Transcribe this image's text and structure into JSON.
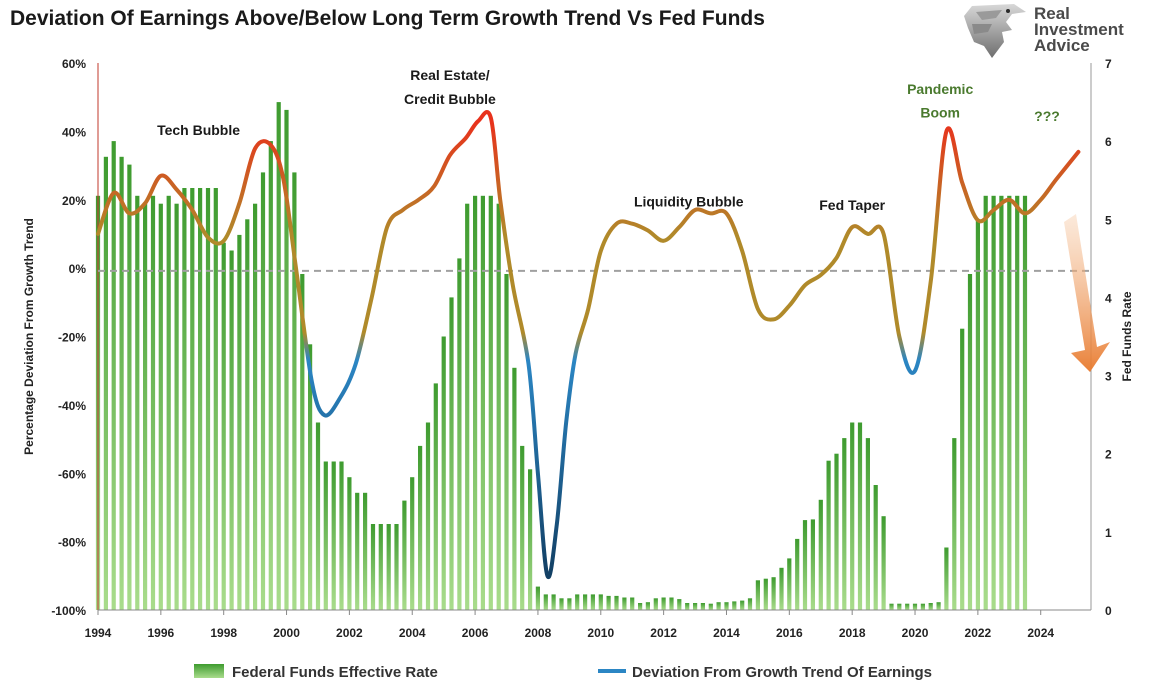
{
  "title": "Deviation Of Earnings Above/Below Long Term Growth Trend Vs Fed Funds",
  "logo": {
    "line1": "Real",
    "line2": "Investment",
    "line3": "Advice"
  },
  "colors": {
    "bar": "#3e9b2f",
    "bar_light": "#a9dc8c",
    "line_high": "#e8321c",
    "line_mid": "#b08a2a",
    "line_low": "#2b86c4",
    "line_deep": "#123e62",
    "reference": "#a0a0a0",
    "annotation_green": "#4a7a2e"
  },
  "chart_data": {
    "type": "bar",
    "xlim": [
      1994,
      2025.6
    ],
    "x_ticks": [
      "1994",
      "1996",
      "1998",
      "2000",
      "2002",
      "2004",
      "2006",
      "2008",
      "2010",
      "2012",
      "2014",
      "2016",
      "2018",
      "2020",
      "2022",
      "2024"
    ],
    "y_left": {
      "label": "Percentage Deviation From Growth Trend",
      "range": [
        -100,
        60
      ],
      "ticks": [
        "60%",
        "40%",
        "20%",
        "0%",
        "-20%",
        "-40%",
        "-60%",
        "-80%",
        "-100%"
      ]
    },
    "y_right": {
      "label": "Fed Funds Rate",
      "range": [
        0,
        7
      ],
      "ticks": [
        "7",
        "6",
        "5",
        "4",
        "3",
        "2",
        "1",
        "0"
      ]
    },
    "series": [
      {
        "name": "Federal Funds Effective Rate",
        "type": "bar",
        "axis": "right",
        "x": [
          1994.0,
          1994.25,
          1994.5,
          1994.75,
          1995.0,
          1995.25,
          1995.5,
          1995.75,
          1996.0,
          1996.25,
          1996.5,
          1996.75,
          1997.0,
          1997.25,
          1997.5,
          1997.75,
          1998.0,
          1998.25,
          1998.5,
          1998.75,
          1999.0,
          1999.25,
          1999.5,
          1999.75,
          2000.0,
          2000.25,
          2000.5,
          2000.75,
          2001.0,
          2001.25,
          2001.5,
          2001.75,
          2002.0,
          2002.25,
          2002.5,
          2002.75,
          2003.0,
          2003.25,
          2003.5,
          2003.75,
          2004.0,
          2004.25,
          2004.5,
          2004.75,
          2005.0,
          2005.25,
          2005.5,
          2005.75,
          2006.0,
          2006.25,
          2006.5,
          2006.75,
          2007.0,
          2007.25,
          2007.5,
          2007.75,
          2008.0,
          2008.25,
          2008.5,
          2008.75,
          2009.0,
          2009.25,
          2009.5,
          2009.75,
          2010.0,
          2010.25,
          2010.5,
          2010.75,
          2011.0,
          2011.25,
          2011.5,
          2011.75,
          2012.0,
          2012.25,
          2012.5,
          2012.75,
          2013.0,
          2013.25,
          2013.5,
          2013.75,
          2014.0,
          2014.25,
          2014.5,
          2014.75,
          2015.0,
          2015.25,
          2015.5,
          2015.75,
          2016.0,
          2016.25,
          2016.5,
          2016.75,
          2017.0,
          2017.25,
          2017.5,
          2017.75,
          2018.0,
          2018.25,
          2018.5,
          2018.75,
          2019.0,
          2019.25,
          2019.5,
          2019.75,
          2020.0,
          2020.25,
          2020.5,
          2020.75,
          2021.0,
          2021.25,
          2021.5,
          2021.75,
          2022.0,
          2022.25,
          2022.5,
          2022.75,
          2023.0,
          2023.25,
          2023.5
        ],
        "values": [
          5.3,
          5.8,
          6.0,
          5.8,
          5.7,
          5.3,
          5.2,
          5.3,
          5.2,
          5.3,
          5.2,
          5.4,
          5.4,
          5.4,
          5.4,
          5.4,
          4.7,
          4.6,
          4.8,
          5.0,
          5.2,
          5.6,
          6.0,
          6.5,
          6.4,
          5.6,
          4.3,
          3.4,
          2.4,
          1.9,
          1.9,
          1.9,
          1.7,
          1.5,
          1.5,
          1.1,
          1.1,
          1.1,
          1.1,
          1.4,
          1.7,
          2.1,
          2.4,
          2.9,
          3.5,
          4.0,
          4.5,
          5.2,
          5.3,
          5.3,
          5.3,
          5.2,
          4.3,
          3.1,
          2.1,
          1.8,
          0.3,
          0.2,
          0.2,
          0.15,
          0.15,
          0.2,
          0.2,
          0.2,
          0.2,
          0.18,
          0.18,
          0.16,
          0.16,
          0.09,
          0.1,
          0.15,
          0.16,
          0.16,
          0.14,
          0.09,
          0.09,
          0.09,
          0.08,
          0.1,
          0.1,
          0.11,
          0.12,
          0.15,
          0.38,
          0.4,
          0.42,
          0.54,
          0.66,
          0.91,
          1.15,
          1.16,
          1.41,
          1.91,
          2.0,
          2.2,
          2.4,
          2.4,
          2.2,
          1.6,
          1.2,
          0.08,
          0.08,
          0.08,
          0.08,
          0.08,
          0.09,
          0.1,
          0.8,
          2.2,
          3.6,
          4.3,
          5.0,
          5.3,
          5.3,
          5.3,
          5.3,
          5.3,
          5.3
        ]
      },
      {
        "name": "Deviation From Growth Trend Of Earnings",
        "type": "line",
        "axis": "left",
        "x": [
          1994.0,
          1994.5,
          1995.0,
          1995.5,
          1996.0,
          1996.5,
          1997.0,
          1997.5,
          1998.0,
          1998.5,
          1999.0,
          1999.5,
          1999.9,
          2000.3,
          2000.8,
          2001.2,
          2001.7,
          2002.2,
          2002.7,
          2003.2,
          2003.7,
          2004.2,
          2004.7,
          2005.2,
          2005.7,
          2006.1,
          2006.5,
          2006.8,
          2007.2,
          2007.7,
          2008.0,
          2008.3,
          2008.6,
          2008.9,
          2009.2,
          2009.6,
          2010.0,
          2010.5,
          2011.0,
          2011.5,
          2012.0,
          2012.5,
          2013.0,
          2013.5,
          2014.0,
          2014.5,
          2015.0,
          2015.5,
          2016.0,
          2016.5,
          2017.0,
          2017.5,
          2018.0,
          2018.5,
          2019.0,
          2019.5,
          2020.0,
          2020.5,
          2021.0,
          2021.5,
          2022.0,
          2022.5,
          2023.0,
          2023.5,
          2024.0,
          2024.5,
          2025.2
        ],
        "values": [
          10,
          22,
          16,
          19,
          27,
          23,
          17,
          9,
          8,
          19,
          35,
          36,
          26,
          0,
          -33,
          -43,
          -38,
          -28,
          -9,
          12,
          17,
          20,
          24,
          33,
          38,
          43,
          44,
          20,
          -5,
          -28,
          -60,
          -90,
          -75,
          -45,
          -25,
          -12,
          5,
          13,
          13,
          11,
          8,
          12,
          17,
          16,
          16,
          5,
          -12,
          -15,
          -11,
          -5,
          -2,
          3,
          12,
          10,
          10,
          -20,
          -30,
          -4,
          40,
          25,
          14,
          17,
          20,
          16,
          20,
          26,
          34
        ]
      },
      {
        "name": "Zero reference",
        "type": "line",
        "style": "dashed",
        "axis": "left",
        "values": [
          -0.8,
          -0.8
        ]
      }
    ],
    "annotations": [
      {
        "text": "Tech Bubble",
        "x": 1997.2,
        "y": 39
      },
      {
        "text": "Real Estate/",
        "x": 2005.2,
        "y": 55
      },
      {
        "text": "Credit Bubble",
        "x": 2005.2,
        "y": 48
      },
      {
        "text": "Liquidity Bubble",
        "x": 2012.8,
        "y": 18
      },
      {
        "text": "Fed Taper",
        "x": 2018.0,
        "y": 17
      },
      {
        "text": "Pandemic",
        "x": 2020.8,
        "y": 51,
        "color": "green"
      },
      {
        "text": "Boom",
        "x": 2020.8,
        "y": 44,
        "color": "green"
      },
      {
        "text": "???",
        "x": 2024.2,
        "y": 43,
        "color": "green"
      }
    ],
    "legend": {
      "placement": "bottom",
      "entries": [
        "Federal Funds Effective Rate",
        "Deviation From Growth Trend Of Earnings"
      ]
    },
    "grid": false
  }
}
